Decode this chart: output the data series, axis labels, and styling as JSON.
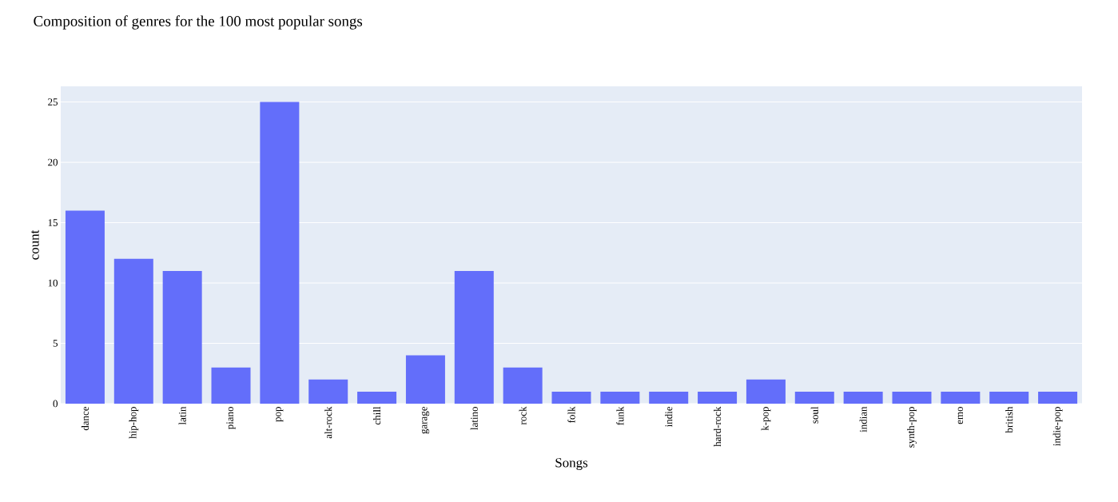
{
  "chart_data": {
    "type": "bar",
    "title": "Composition of genres for the 100 most popular songs",
    "xlabel": "Songs",
    "ylabel": "count",
    "categories": [
      "dance",
      "hip-hop",
      "latin",
      "piano",
      "pop",
      "alt-rock",
      "chill",
      "garage",
      "latino",
      "rock",
      "folk",
      "funk",
      "indie",
      "hard-rock",
      "k-pop",
      "soul",
      "indian",
      "synth-pop",
      "emo",
      "british",
      "indie-pop"
    ],
    "values": [
      16,
      12,
      11,
      3,
      25,
      2,
      1,
      4,
      11,
      3,
      1,
      1,
      1,
      1,
      2,
      1,
      1,
      1,
      1,
      1,
      1
    ],
    "color": "#636efa",
    "ylim": [
      0,
      26.3
    ],
    "yticks": [
      0,
      5,
      10,
      15,
      20,
      25
    ],
    "grid": "y"
  }
}
